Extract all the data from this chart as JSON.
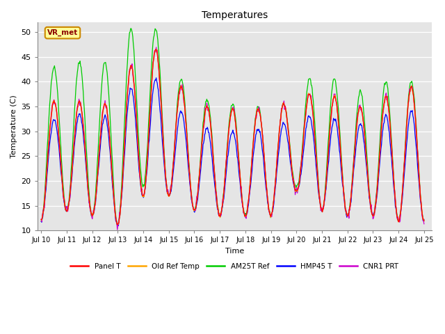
{
  "title": "Temperatures",
  "xlabel": "Time",
  "ylabel": "Temperature (C)",
  "ylim": [
    10,
    52
  ],
  "background_color": "#e5e5e5",
  "legend_labels": [
    "Panel T",
    "Old Ref Temp",
    "AM25T Ref",
    "HMP45 T",
    "CNR1 PRT"
  ],
  "legend_colors": [
    "#ff0000",
    "#ffa500",
    "#00cc00",
    "#0000ff",
    "#cc00cc"
  ],
  "annotation_text": "VR_met",
  "x_tick_labels": [
    "Jul 10",
    "Jul 11",
    "Jul 12",
    "Jul 13",
    "Jul 14",
    "Jul 15",
    "Jul 16",
    "Jul 17",
    "Jul 18",
    "Jul 19",
    "Jul 20",
    "Jul 21",
    "Jul 22",
    "Jul 23",
    "Jul 24",
    "Jul 25"
  ],
  "yticks": [
    10,
    15,
    20,
    25,
    30,
    35,
    40,
    45,
    50
  ],
  "n_days": 15,
  "pts_per_day": 48,
  "amps_panel": [
    23,
    23,
    22,
    25,
    33,
    26,
    21,
    22,
    21,
    22,
    18,
    25,
    22,
    22,
    27
  ],
  "mins_panel": [
    12,
    14,
    13,
    11,
    17,
    17,
    14,
    13,
    13,
    13,
    18,
    14,
    13,
    13,
    12
  ],
  "amps_green": [
    30,
    30,
    31,
    33,
    38,
    27,
    23,
    23,
    22,
    22,
    17,
    31,
    23,
    27,
    28
  ],
  "mins_green": [
    12,
    14,
    13,
    11,
    19,
    17,
    14,
    13,
    13,
    13,
    19,
    14,
    13,
    13,
    12
  ],
  "amps_blue": [
    19,
    20,
    20,
    22,
    27,
    20,
    17,
    17,
    17,
    18,
    14,
    20,
    18,
    19,
    22
  ],
  "mins_blue": [
    12,
    14,
    13,
    11,
    17,
    17,
    14,
    13,
    13,
    13,
    18,
    14,
    13,
    13,
    12
  ]
}
